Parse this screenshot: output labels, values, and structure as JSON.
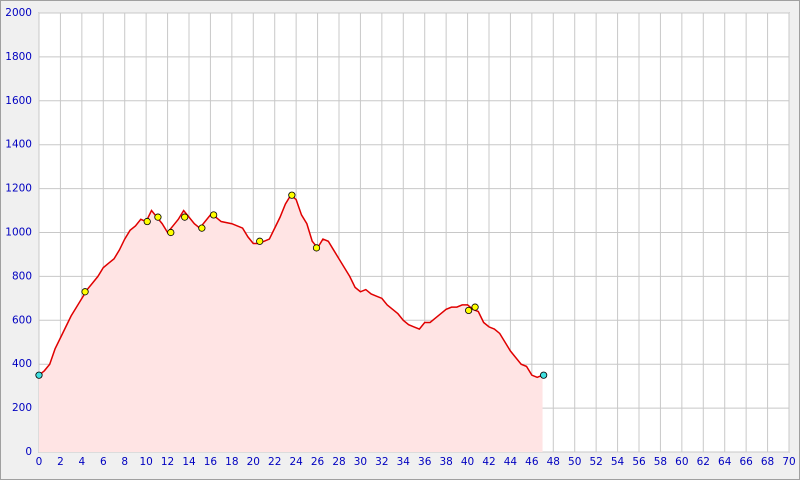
{
  "chart_data": {
    "type": "area",
    "x": [
      0,
      0.5,
      1,
      1.5,
      2,
      2.5,
      3,
      3.5,
      4,
      4.5,
      5,
      5.5,
      6,
      6.5,
      7,
      7.5,
      8,
      8.5,
      9,
      9.5,
      10,
      10.5,
      11,
      11.5,
      12,
      12.5,
      13,
      13.5,
      14,
      14.5,
      15,
      15.5,
      16,
      16.5,
      17,
      18,
      19,
      19.5,
      20,
      20.5,
      21,
      21.5,
      22,
      22.5,
      23,
      23.5,
      24,
      24.5,
      25,
      25.5,
      26,
      26.5,
      27,
      27.5,
      28,
      28.5,
      29,
      29.5,
      30,
      30.5,
      31,
      31.5,
      32,
      32.5,
      33,
      33.5,
      34,
      34.5,
      35,
      35.5,
      36,
      36.5,
      37,
      37.5,
      38,
      38.5,
      39,
      39.5,
      40,
      40.5,
      41,
      41.5,
      42,
      42.5,
      43,
      43.5,
      44,
      44.5,
      45,
      45.5,
      46,
      46.5,
      47
    ],
    "series": [
      {
        "color": "#e00000",
        "fill": "#ffe4e4",
        "values": [
          350,
          370,
          400,
          470,
          520,
          570,
          620,
          660,
          700,
          740,
          770,
          800,
          840,
          860,
          880,
          920,
          970,
          1010,
          1030,
          1060,
          1050,
          1100,
          1070,
          1040,
          1000,
          1030,
          1060,
          1100,
          1070,
          1040,
          1020,
          1050,
          1080,
          1070,
          1050,
          1040,
          1020,
          980,
          950,
          950,
          960,
          970,
          1020,
          1070,
          1130,
          1170,
          1150,
          1080,
          1040,
          960,
          930,
          970,
          960,
          920,
          880,
          840,
          800,
          750,
          730,
          740,
          720,
          710,
          700,
          670,
          650,
          630,
          600,
          580,
          570,
          560,
          590,
          590,
          610,
          630,
          650,
          660,
          660,
          670,
          670,
          650,
          640,
          590,
          570,
          560,
          540,
          500,
          460,
          430,
          400,
          390,
          350,
          340,
          350
        ]
      }
    ],
    "waypoints": {
      "color": "#ffff00",
      "x": [
        4.3,
        10.1,
        11.1,
        12.3,
        13.6,
        15.2,
        16.3,
        20.6,
        23.6,
        25.9,
        40.1,
        40.7
      ],
      "values": [
        730,
        1050,
        1070,
        1000,
        1070,
        1020,
        1080,
        960,
        1170,
        930,
        645,
        660
      ]
    },
    "endpoints": {
      "color": "#40e0e0",
      "x": [
        0,
        47.1
      ],
      "values": [
        350,
        350
      ]
    },
    "xlim": [
      0,
      70
    ],
    "xticks": [
      0,
      2,
      4,
      6,
      8,
      10,
      12,
      14,
      16,
      18,
      20,
      22,
      24,
      26,
      28,
      30,
      32,
      34,
      36,
      38,
      40,
      42,
      44,
      46,
      48,
      50,
      52,
      54,
      56,
      58,
      60,
      62,
      64,
      66,
      68,
      70
    ],
    "ylim": [
      0,
      2000
    ],
    "yticks": [
      0,
      200,
      400,
      600,
      800,
      1000,
      1200,
      1400,
      1600,
      1800,
      2000
    ],
    "grid": true
  }
}
